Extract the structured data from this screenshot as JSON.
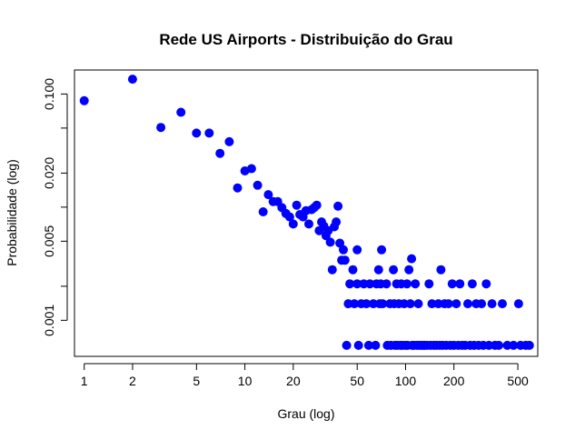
{
  "chart_data": {
    "type": "scatter",
    "title": "Rede US Airports - Distribuição do Grau",
    "xlabel": "Grau (log)",
    "ylabel": "Probabilidade (log)",
    "x_scale": "log",
    "y_scale": "log",
    "xlim": [
      0.87,
      665
    ],
    "ylim": [
      0.00048,
      0.163
    ],
    "x_ticks": [
      1,
      2,
      5,
      10,
      20,
      50,
      100,
      200,
      500
    ],
    "x_tick_labels": [
      "1",
      "2",
      "5",
      "10",
      "20",
      "50",
      "100",
      "200",
      "500"
    ],
    "y_ticks": [
      0.001,
      0.002,
      0.005,
      0.01,
      0.02,
      0.05,
      0.1
    ],
    "y_tick_labels": [
      "0.001",
      "",
      "0.005",
      "",
      "0.020",
      "",
      "0.100"
    ],
    "grid": false,
    "marker_color": "#0000ff",
    "points": [
      [
        1,
        0.0873
      ],
      [
        2,
        0.1353
      ],
      [
        3,
        0.0506
      ],
      [
        4,
        0.0689
      ],
      [
        5,
        0.0451
      ],
      [
        6,
        0.0451
      ],
      [
        7,
        0.0299
      ],
      [
        8,
        0.0379
      ],
      [
        9,
        0.0148
      ],
      [
        10,
        0.0209
      ],
      [
        11,
        0.0219
      ],
      [
        12,
        0.0156
      ],
      [
        13,
        0.0091
      ],
      [
        14,
        0.0129
      ],
      [
        15,
        0.0112
      ],
      [
        16,
        0.0112
      ],
      [
        17,
        0.0099
      ],
      [
        18,
        0.0088
      ],
      [
        19,
        0.0082
      ],
      [
        20,
        0.0071
      ],
      [
        21,
        0.0104
      ],
      [
        22,
        0.0086
      ],
      [
        23,
        0.0082
      ],
      [
        24,
        0.0093
      ],
      [
        25,
        0.0071
      ],
      [
        26,
        0.0095
      ],
      [
        27,
        0.0099
      ],
      [
        28,
        0.0104
      ],
      [
        29,
        0.0062
      ],
      [
        30,
        0.0074
      ],
      [
        31,
        0.0068
      ],
      [
        32,
        0.0056
      ],
      [
        33,
        0.0062
      ],
      [
        34,
        0.0049
      ],
      [
        35,
        0.0028
      ],
      [
        36,
        0.0067
      ],
      [
        37,
        0.0074
      ],
      [
        38,
        0.0102
      ],
      [
        39,
        0.0048
      ],
      [
        40,
        0.0034
      ],
      [
        41,
        0.0042
      ],
      [
        42,
        0.0034
      ],
      [
        43,
        0.0006
      ],
      [
        44,
        0.0014
      ],
      [
        45,
        0.0021
      ],
      [
        47,
        0.0028
      ],
      [
        48,
        0.0014
      ],
      [
        50,
        0.0042
      ],
      [
        50,
        0.0021
      ],
      [
        51,
        0.0006
      ],
      [
        53,
        0.0014
      ],
      [
        55,
        0.0021
      ],
      [
        57,
        0.0014
      ],
      [
        59,
        0.0006
      ],
      [
        60,
        0.0021
      ],
      [
        63,
        0.0014
      ],
      [
        65,
        0.0006
      ],
      [
        66,
        0.0021
      ],
      [
        68,
        0.0028
      ],
      [
        69,
        0.0014
      ],
      [
        70,
        0.0021
      ],
      [
        71,
        0.0042
      ],
      [
        72,
        0.0014
      ],
      [
        76,
        0.0021
      ],
      [
        77,
        0.0006
      ],
      [
        80,
        0.0014
      ],
      [
        81,
        0.0006
      ],
      [
        84,
        0.0028
      ],
      [
        85,
        0.0014
      ],
      [
        86,
        0.0006
      ],
      [
        88,
        0.0021
      ],
      [
        89,
        0.0006
      ],
      [
        91,
        0.0014
      ],
      [
        93,
        0.0006
      ],
      [
        94,
        0.0021
      ],
      [
        96,
        0.0006
      ],
      [
        98,
        0.0014
      ],
      [
        100,
        0.0006
      ],
      [
        102,
        0.0021
      ],
      [
        103,
        0.0006
      ],
      [
        105,
        0.0028
      ],
      [
        107,
        0.0014
      ],
      [
        109,
        0.0035
      ],
      [
        110,
        0.0006
      ],
      [
        113,
        0.0006
      ],
      [
        115,
        0.0021
      ],
      [
        118,
        0.0006
      ],
      [
        120,
        0.0014
      ],
      [
        122,
        0.0006
      ],
      [
        126,
        0.0006
      ],
      [
        129,
        0.0006
      ],
      [
        132,
        0.0006
      ],
      [
        136,
        0.0006
      ],
      [
        140,
        0.0021
      ],
      [
        143,
        0.0006
      ],
      [
        146,
        0.0014
      ],
      [
        150,
        0.0006
      ],
      [
        156,
        0.0006
      ],
      [
        160,
        0.0014
      ],
      [
        163,
        0.0006
      ],
      [
        166,
        0.0028
      ],
      [
        170,
        0.0006
      ],
      [
        175,
        0.0014
      ],
      [
        179,
        0.0006
      ],
      [
        185,
        0.0014
      ],
      [
        190,
        0.0006
      ],
      [
        195,
        0.0021
      ],
      [
        200,
        0.0006
      ],
      [
        207,
        0.0014
      ],
      [
        213,
        0.0006
      ],
      [
        218,
        0.0021
      ],
      [
        225,
        0.0006
      ],
      [
        235,
        0.0006
      ],
      [
        244,
        0.0014
      ],
      [
        252,
        0.0006
      ],
      [
        260,
        0.0021
      ],
      [
        267,
        0.0006
      ],
      [
        275,
        0.0014
      ],
      [
        285,
        0.0006
      ],
      [
        297,
        0.0014
      ],
      [
        305,
        0.0006
      ],
      [
        318,
        0.0021
      ],
      [
        330,
        0.0006
      ],
      [
        345,
        0.0014
      ],
      [
        360,
        0.0006
      ],
      [
        380,
        0.0006
      ],
      [
        400,
        0.0014
      ],
      [
        430,
        0.0006
      ],
      [
        470,
        0.0006
      ],
      [
        505,
        0.0014
      ],
      [
        520,
        0.0006
      ],
      [
        560,
        0.0006
      ],
      [
        590,
        0.0006
      ]
    ]
  }
}
